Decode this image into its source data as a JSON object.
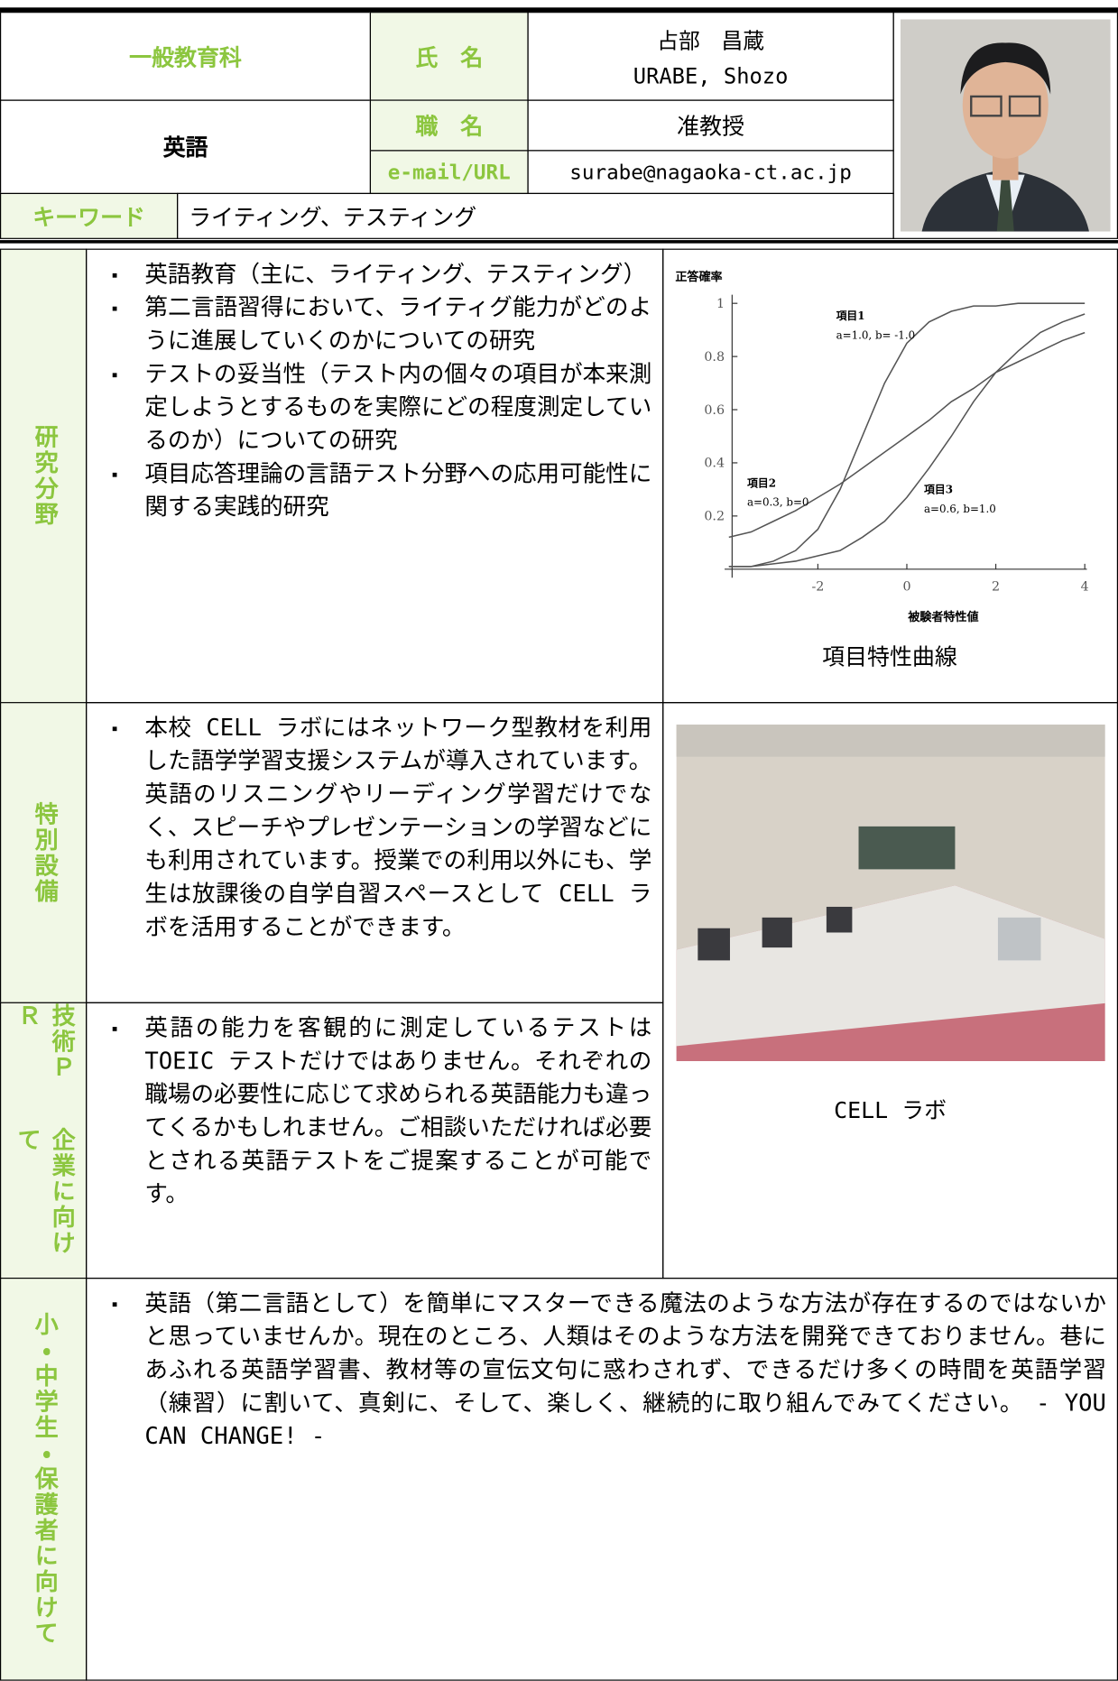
{
  "header": {
    "department": "一般教育科",
    "name_label": "氏　名",
    "name_ja": "占部　昌蔵",
    "name_en": "URABE, Shozo",
    "field": "英語",
    "position_label": "職　名",
    "position": "准教授",
    "contact_label": "e-mail/URL",
    "email": "surabe@nagaoka-ct.ac.jp",
    "keyword_label": "キーワード",
    "keywords": "ライティング、テスティング"
  },
  "sections": [
    {
      "label": "研究分野",
      "items": [
        "英語教育（主に、ライティング、テスティング）",
        "第二言語習得において、ライティグ能力がどのように進展していくのかについての研究",
        "テストの妥当性（テスト内の個々の項目が本来測定しようとするものを実際にどの程度測定しているのか）についての研究",
        "項目応答理論の言語テスト分野への応用可能性に関する実践的研究"
      ]
    },
    {
      "label": "特別設備",
      "items": [
        "本校 CELL ラボにはネットワーク型教材を利用した語学学習支援システムが導入されています。英語のリスニングやリーディング学習だけでなく、スピーチやプレゼンテーションの学習などにも利用されています。授業での利用以外にも、学生は放課後の自学自習スペースとして CELL ラボを活用することができます。"
      ]
    },
    {
      "label_lines": [
        "技術ＰＲ",
        "企業に向けて"
      ],
      "items": [
        "英語の能力を客観的に測定しているテストは TOEIC テストだけではありません。それぞれの職場の必要性に応じて求められる英語能力も違ってくるかもしれません。ご相談いただければ必要とされる英語テストをご提案することが可能です。"
      ]
    },
    {
      "label": "小・中学生・保護者に向けて",
      "items": [
        "英語（第二言語として）を簡単にマスターできる魔法のような方法が存在するのではないかと思っていませんか。現在のところ、人類はそのような方法を開発できておりません。巷にあふれる英語学習書、教材等の宣伝文句に惑わされず、できるだけ多くの時間を英語学習（練習）に割いて、真剣に、そして、楽しく、継続的に取り組んでみてください。　- YOU CAN CHANGE! -"
      ]
    }
  ],
  "photo_caption": "CELL ラボ",
  "chart_data": {
    "type": "line",
    "caption": "項目特性曲線",
    "ylabel": "正答確率",
    "xlabel": "被験者特性値",
    "x": [
      -4,
      -3.5,
      -3,
      -2.5,
      -2,
      -1.5,
      -1,
      -0.5,
      0,
      0.5,
      1,
      1.5,
      2,
      2.5,
      3,
      3.5,
      4
    ],
    "series": [
      {
        "name": "項目1",
        "params": "a=1.0, b= -1.0",
        "color": "#555555",
        "values": [
          0.01,
          0.01,
          0.03,
          0.07,
          0.15,
          0.3,
          0.5,
          0.7,
          0.85,
          0.93,
          0.97,
          0.99,
          0.99,
          1,
          1,
          1,
          1
        ]
      },
      {
        "name": "項目2",
        "params": "a=0.3, b=0",
        "color": "#555555",
        "values": [
          0.12,
          0.14,
          0.18,
          0.22,
          0.27,
          0.32,
          0.38,
          0.44,
          0.5,
          0.56,
          0.63,
          0.68,
          0.74,
          0.78,
          0.82,
          0.86,
          0.89
        ]
      },
      {
        "name": "項目3",
        "params": "a=0.6, b=1.0",
        "color": "#555555",
        "values": [
          0.01,
          0.01,
          0.02,
          0.03,
          0.05,
          0.07,
          0.12,
          0.18,
          0.27,
          0.38,
          0.5,
          0.63,
          0.74,
          0.82,
          0.89,
          0.93,
          0.96
        ]
      }
    ],
    "xlim": [
      -4,
      4
    ],
    "ylim": [
      0,
      1
    ],
    "xticks": [
      -2,
      0,
      2,
      4
    ],
    "yticks": [
      0.2,
      0.4,
      0.6,
      0.8,
      1
    ]
  }
}
